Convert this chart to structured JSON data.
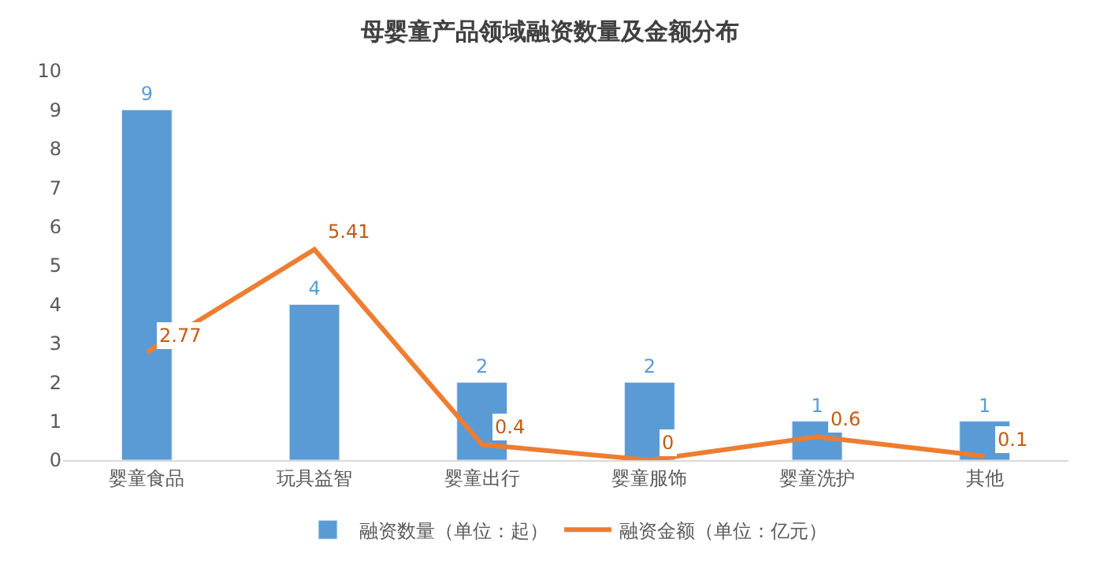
{
  "chart_data": {
    "type": "bar",
    "title": "母婴童产品领域融资数量及金额分布",
    "categories": [
      "婴童食品",
      "玩具益智",
      "婴童出行",
      "婴童服饰",
      "婴童洗护",
      "其他"
    ],
    "series": [
      {
        "name": "融资数量（单位：起）",
        "color": "#5b9bd5",
        "values": [
          9,
          4,
          2,
          2,
          1,
          1
        ]
      },
      {
        "name": "融资金额（单位：亿元）",
        "type": "line",
        "color": "#ed7d31",
        "values": [
          2.77,
          5.41,
          0.4,
          0,
          0.6,
          0.1
        ]
      }
    ],
    "ylim": [
      0,
      10
    ],
    "yticks": [
      0,
      1,
      2,
      3,
      4,
      5,
      6,
      7,
      8,
      9,
      10
    ],
    "legend": "bottom",
    "data_labels": true,
    "marker": "none",
    "line_style": "solid"
  }
}
